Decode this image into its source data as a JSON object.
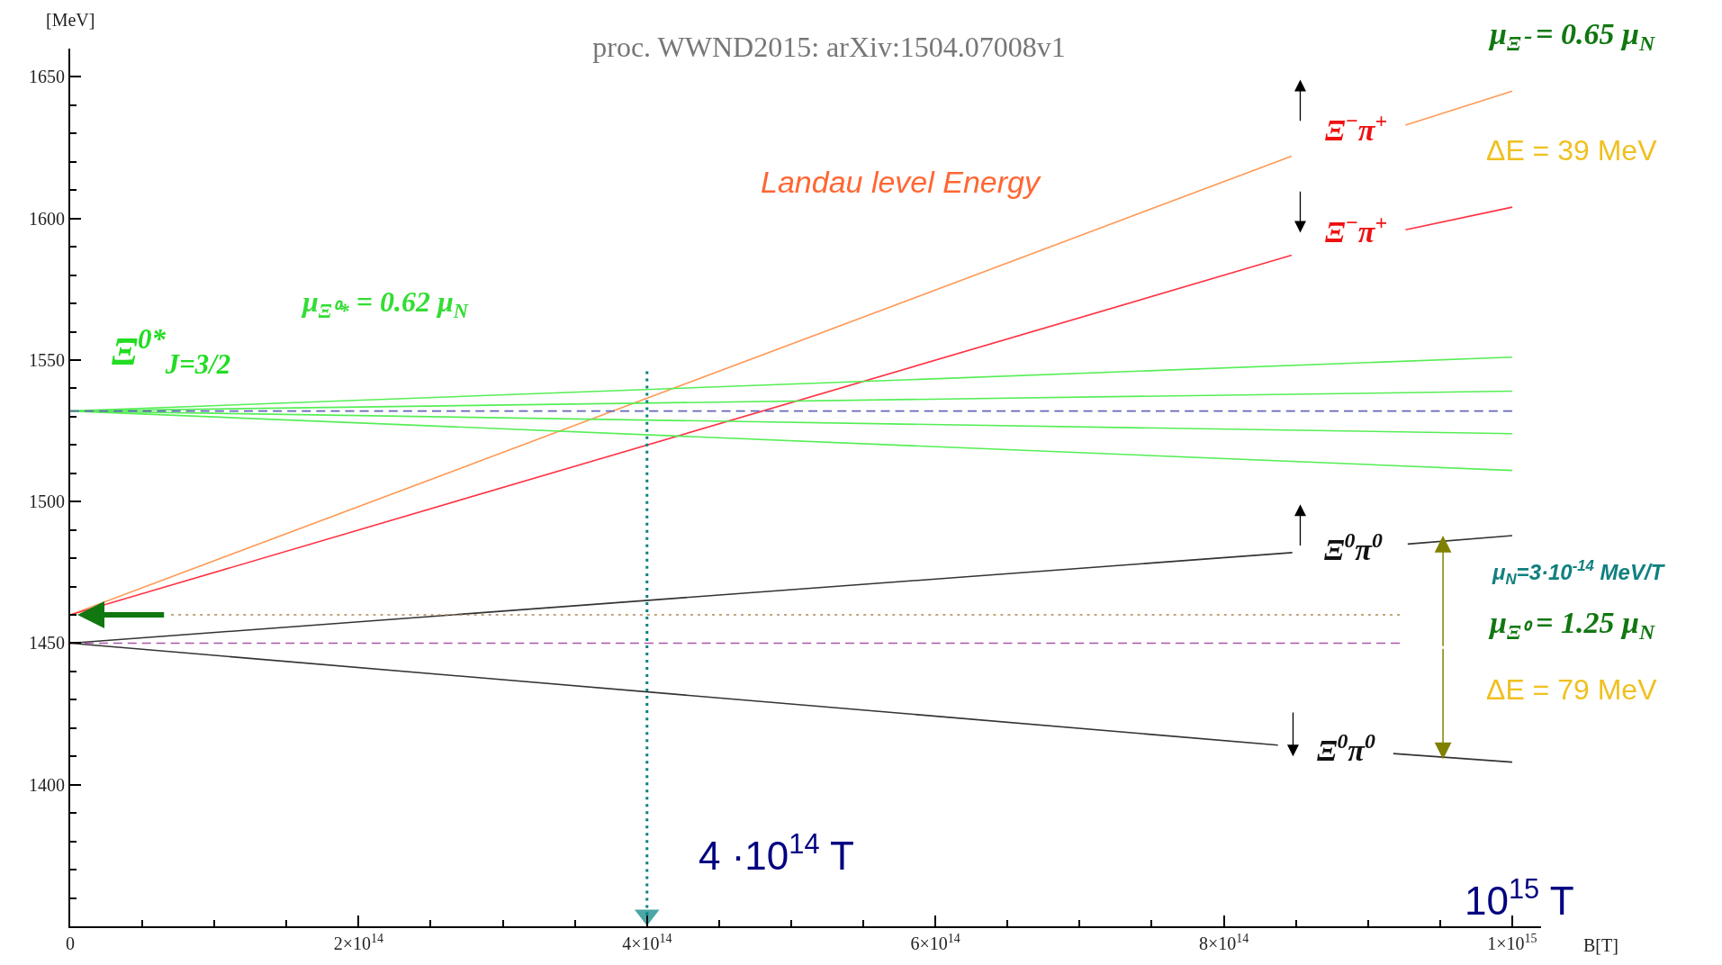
{
  "chart_data": {
    "type": "line",
    "title": "proc. WWND2015: arXiv:1504.07008v1",
    "xlabel": "B[T]",
    "ylabel": "[MeV]",
    "xlim": [
      0,
      1020000000000000.0
    ],
    "ylim": [
      1350,
      1660
    ],
    "xticks": [
      {
        "value": 0,
        "label": "0"
      },
      {
        "value": 50000000000000.0,
        "label": null
      },
      {
        "value": 100000000000000.0,
        "label": null
      },
      {
        "value": 150000000000000.0,
        "label": null
      },
      {
        "value": 200000000000000.0,
        "label": "2×10$^{14}$"
      },
      {
        "value": 250000000000000.0,
        "label": null
      },
      {
        "value": 300000000000000.0,
        "label": null
      },
      {
        "value": 350000000000000.0,
        "label": null
      },
      {
        "value": 400000000000000.0,
        "label": "4×10$^{14}$"
      },
      {
        "value": 450000000000000.0,
        "label": null
      },
      {
        "value": 500000000000000.0,
        "label": null
      },
      {
        "value": 550000000000000.0,
        "label": null
      },
      {
        "value": 600000000000000.0,
        "label": "6×10$^{14}$"
      },
      {
        "value": 650000000000000.0,
        "label": null
      },
      {
        "value": 700000000000000.0,
        "label": null
      },
      {
        "value": 750000000000000.0,
        "label": null
      },
      {
        "value": 800000000000000.0,
        "label": "8×10$^{14}$"
      },
      {
        "value": 850000000000000.0,
        "label": null
      },
      {
        "value": 900000000000000.0,
        "label": null
      },
      {
        "value": 950000000000000.0,
        "label": null
      },
      {
        "value": 1000000000000000.0,
        "label": "1×10$^{15}$"
      }
    ],
    "yticks": [
      {
        "value": 1360,
        "label": null
      },
      {
        "value": 1370,
        "label": null
      },
      {
        "value": 1380,
        "label": null
      },
      {
        "value": 1390,
        "label": null
      },
      1400,
      {
        "value": 1410,
        "label": null
      },
      {
        "value": 1420,
        "label": null
      },
      {
        "value": 1430,
        "label": null
      },
      {
        "value": 1440,
        "label": null
      },
      1450,
      {
        "value": 1460,
        "label": null
      },
      {
        "value": 1470,
        "label": null
      },
      {
        "value": 1480,
        "label": null
      },
      {
        "value": 1490,
        "label": null
      },
      1500,
      {
        "value": 1510,
        "label": null
      },
      {
        "value": 1520,
        "label": null
      },
      {
        "value": 1530,
        "label": null
      },
      {
        "value": 1540,
        "label": null
      },
      1550,
      {
        "value": 1560,
        "label": null
      },
      {
        "value": 1570,
        "label": null
      },
      {
        "value": 1580,
        "label": null
      },
      {
        "value": 1590,
        "label": null
      },
      1600,
      {
        "value": 1610,
        "label": null
      },
      {
        "value": 1620,
        "label": null
      },
      {
        "value": 1630,
        "label": null
      },
      {
        "value": 1640,
        "label": null
      },
      1650
    ],
    "series": [
      {
        "color": "#ff9955",
        "x": [
          0,
          847000000000000.0,
          890000000000000.0,
          926000000000000.0,
          1000000000000000.0
        ],
        "values": [
          1460,
          1622,
          null,
          1633,
          1645
        ]
      },
      {
        "color": "#ff3344",
        "x": [
          0,
          847000000000000.0,
          890000000000000.0,
          926000000000000.0,
          1000000000000000.0
        ],
        "values": [
          1460,
          1587,
          null,
          1596,
          1604
        ]
      },
      {
        "color": "#55ee55",
        "x": [
          0,
          1000000000000000.0
        ],
        "values": [
          1532,
          1551
        ]
      },
      {
        "color": "#55ee55",
        "x": [
          0,
          1000000000000000.0
        ],
        "values": [
          1532,
          1539
        ]
      },
      {
        "color": "#55ee55",
        "x": [
          0,
          1000000000000000.0
        ],
        "values": [
          1532,
          1524
        ]
      },
      {
        "color": "#55ee55",
        "x": [
          0,
          1000000000000000.0
        ],
        "values": [
          1532,
          1511
        ]
      },
      {
        "color": "#6666bb",
        "line_style": "dashed",
        "x": [
          0,
          1000000000000000.0
        ],
        "values": [
          1532,
          1532
        ]
      },
      {
        "color": "#333333",
        "x": [
          0,
          847500000000000.0,
          890000000000000.0,
          927500000000000.0,
          1000000000000000.0
        ],
        "values": [
          1450,
          1482,
          null,
          1485,
          1488
        ]
      },
      {
        "color": "#333333",
        "x": [
          0,
          837500000000000.0,
          880000000000000.0,
          917500000000000.0,
          1000000000000000.0
        ],
        "values": [
          1450,
          1414,
          null,
          1411,
          1408
        ]
      },
      {
        "color": "#b08850",
        "line_style": "dotted",
        "x": [
          70000000000000.0,
          922000000000000.0
        ],
        "values": [
          1460,
          1460
        ]
      },
      {
        "color": "#aa55aa",
        "line_style": "dashed",
        "x": [
          0,
          922000000000000.0
        ],
        "values": [
          1450,
          1450
        ]
      },
      {
        "color": "#008080",
        "line_style": "dotted",
        "x": [
          400000000000000.0,
          400000000000000.0
        ],
        "values": [
          1546,
          1354
        ],
        "marker": "triangle"
      }
    ],
    "annotations": [
      "Landau level Energy",
      "Ξ$^{0*}$$_{J=3/2}$",
      "μ$_{Ξ⁰*}$ = 0.62 μ$_{N}$",
      "Ξ$^{−}$π$^{+}$",
      "Ξ$^{−}$π$^{+}$",
      "Ξ$^{0}$π$^{0}$",
      "Ξ$^{0}$π$^{0}$",
      "4 ·10$^{14}$ T",
      "10$^{15}$ T",
      "μ$_{Ξ⁻}$ = 0.65 μ$_{N}$",
      "ΔE = 39 MeV",
      "μ$_{N}$=3·10$^{-14}$ MeV/T",
      "μ$_{Ξ⁰}$ = 1.25 μ$_{N}$",
      "ΔE = 79 MeV"
    ]
  }
}
